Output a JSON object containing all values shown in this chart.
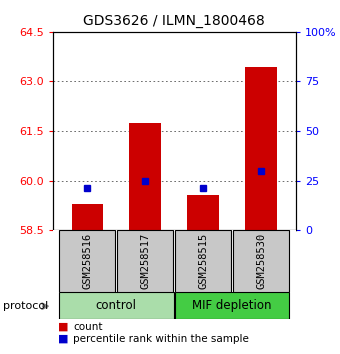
{
  "title": "GDS3626 / ILMN_1800468",
  "samples": [
    "GSM258516",
    "GSM258517",
    "GSM258515",
    "GSM258530"
  ],
  "count_values": [
    59.3,
    61.75,
    59.55,
    63.45
  ],
  "percentile_values": [
    21,
    25,
    21,
    30
  ],
  "ylim_left": [
    58.5,
    64.5
  ],
  "ylim_right": [
    0,
    100
  ],
  "yticks_left": [
    58.5,
    60.0,
    61.5,
    63.0,
    64.5
  ],
  "yticks_right": [
    0,
    25,
    50,
    75,
    100
  ],
  "ytick_labels_right": [
    "0",
    "25",
    "50",
    "75",
    "100%"
  ],
  "bar_color": "#cc0000",
  "marker_color": "#0000cc",
  "bar_bottom": 58.5,
  "groups": [
    {
      "label": "control",
      "indices": [
        0,
        1
      ],
      "color": "#aaddaa"
    },
    {
      "label": "MIF depletion",
      "indices": [
        2,
        3
      ],
      "color": "#44cc44"
    }
  ],
  "protocol_label": "protocol",
  "legend_items": [
    {
      "color": "#cc0000",
      "label": "count"
    },
    {
      "color": "#0000cc",
      "label": "percentile rank within the sample"
    }
  ],
  "grid_color": "#555555",
  "background_color": "#ffffff",
  "sample_box_color": "#c8c8c8",
  "title_fontsize": 10,
  "tick_fontsize": 8,
  "bar_width": 0.55
}
